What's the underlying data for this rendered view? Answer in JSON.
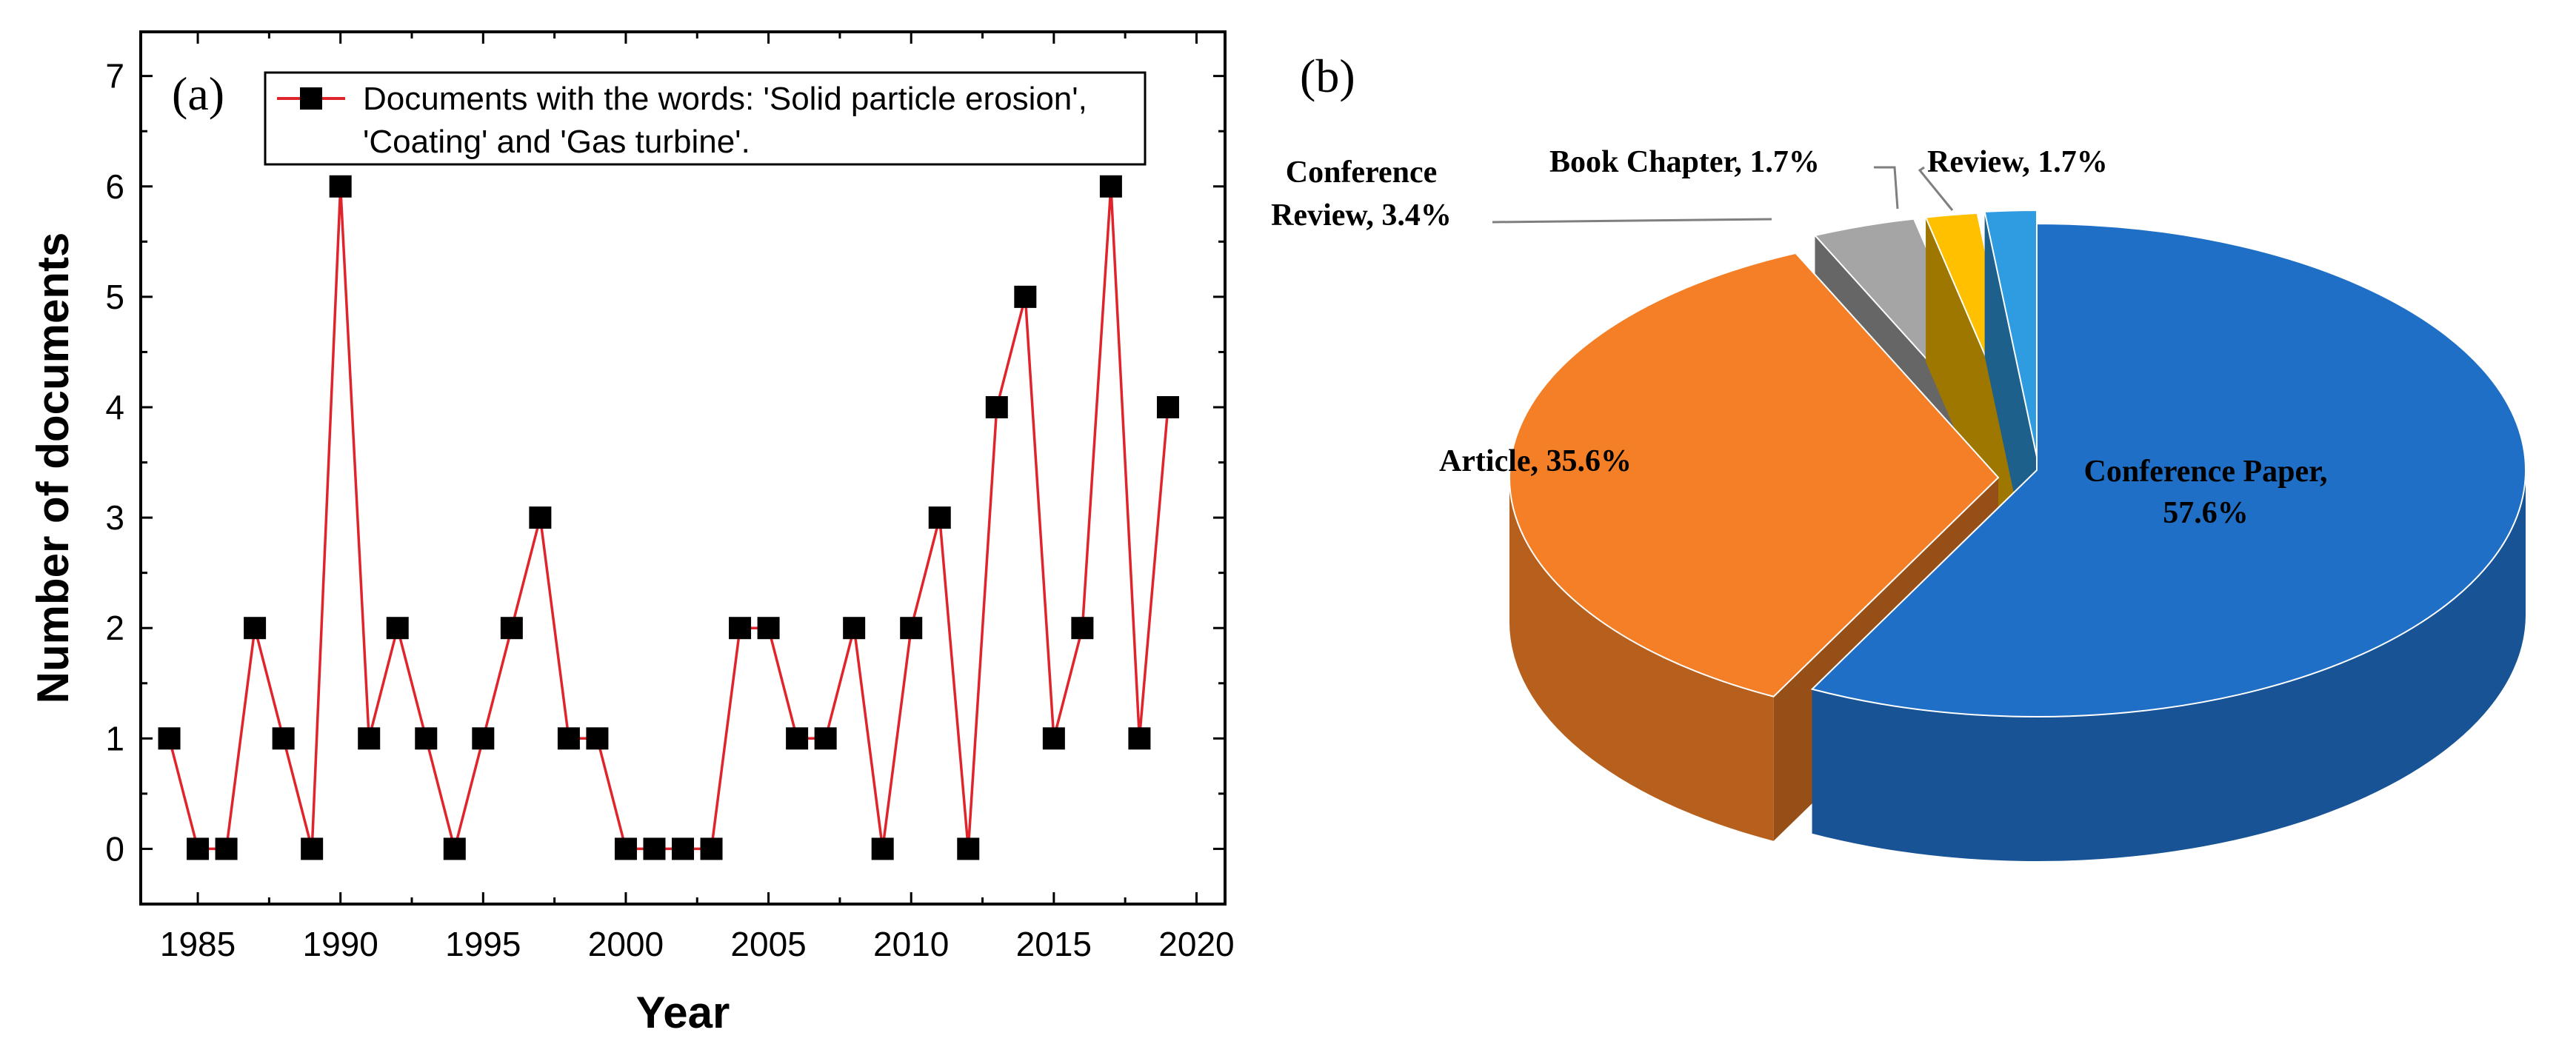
{
  "chart_data": [
    {
      "type": "line",
      "panel_label": "(a)",
      "xlabel": "Year",
      "ylabel": "Number of documents",
      "xlim": [
        1983,
        2021
      ],
      "ylim": [
        -0.5,
        7.4
      ],
      "xticks": [
        1985,
        1990,
        1995,
        2000,
        2005,
        2010,
        2015,
        2020
      ],
      "yticks": [
        0,
        1,
        2,
        3,
        4,
        5,
        6,
        7
      ],
      "legend": {
        "position": "top-right",
        "lines": [
          "Documents with the words: 'Solid particle erosion',",
          "'Coating' and 'Gas turbine'."
        ]
      },
      "series": [
        {
          "name": "Documents with the words: 'Solid particle erosion', 'Coating' and 'Gas turbine'.",
          "line_color": "#e0242b",
          "marker_color": "#000000",
          "x": [
            1984,
            1985,
            1986,
            1987,
            1988,
            1989,
            1990,
            1991,
            1992,
            1993,
            1994,
            1995,
            1996,
            1997,
            1998,
            1999,
            2000,
            2001,
            2002,
            2003,
            2004,
            2005,
            2006,
            2007,
            2008,
            2009,
            2010,
            2011,
            2012,
            2013,
            2014,
            2015,
            2016,
            2017,
            2018,
            2019
          ],
          "y": [
            1,
            0,
            0,
            2,
            1,
            0,
            6,
            1,
            2,
            1,
            0,
            1,
            2,
            3,
            1,
            1,
            0,
            0,
            0,
            0,
            2,
            2,
            1,
            1,
            2,
            0,
            2,
            3,
            0,
            4,
            5,
            1,
            2,
            6,
            1,
            4
          ]
        }
      ]
    },
    {
      "type": "pie",
      "panel_label": "(b)",
      "slices": [
        {
          "label": "Conference Paper",
          "value": 57.6,
          "display": [
            "Conference Paper,",
            "57.6%"
          ],
          "color": "#1f6fc6"
        },
        {
          "label": "Article",
          "value": 35.6,
          "display": [
            "Article, 35.6%"
          ],
          "color": "#f47f27"
        },
        {
          "label": "Conference Review",
          "value": 3.4,
          "display": [
            "Conference",
            "Review, 3.4%"
          ],
          "color": "#a5a5a5"
        },
        {
          "label": "Book Chapter",
          "value": 1.7,
          "display": [
            "Book Chapter, 1.7%"
          ],
          "color": "#ffc000"
        },
        {
          "label": "Review",
          "value": 1.7,
          "display": [
            "Review, 1.7%"
          ],
          "color": "#2f9be0"
        }
      ]
    }
  ]
}
